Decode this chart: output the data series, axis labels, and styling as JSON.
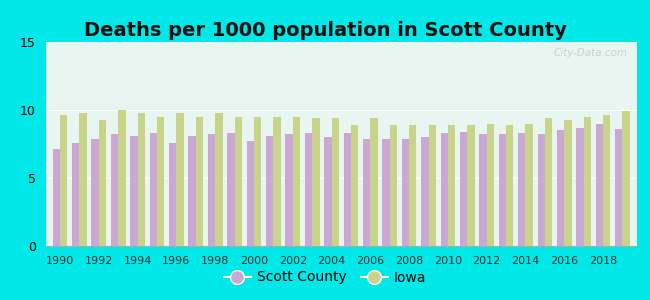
{
  "title": "Deaths per 1000 population in Scott County",
  "title_fontsize": 14,
  "background_color": "#00e8e8",
  "plot_bg": "#e8f5f0",
  "years": [
    1990,
    1991,
    1992,
    1993,
    1994,
    1995,
    1996,
    1997,
    1998,
    1999,
    2000,
    2001,
    2002,
    2003,
    2004,
    2005,
    2006,
    2007,
    2008,
    2009,
    2010,
    2011,
    2012,
    2013,
    2014,
    2015,
    2016,
    2017,
    2018,
    2019
  ],
  "scott_county": [
    7.1,
    7.6,
    7.9,
    8.2,
    8.1,
    8.3,
    7.6,
    8.1,
    8.2,
    8.3,
    7.7,
    8.1,
    8.2,
    8.3,
    8.0,
    8.3,
    7.9,
    7.9,
    7.9,
    8.0,
    8.3,
    8.4,
    8.2,
    8.2,
    8.3,
    8.2,
    8.5,
    8.7,
    9.0,
    8.6
  ],
  "iowa": [
    9.6,
    9.8,
    9.3,
    10.0,
    9.8,
    9.5,
    9.8,
    9.5,
    9.8,
    9.5,
    9.5,
    9.5,
    9.5,
    9.4,
    9.4,
    8.9,
    9.4,
    8.9,
    8.9,
    8.9,
    8.9,
    8.9,
    9.0,
    8.9,
    9.0,
    9.4,
    9.3,
    9.5,
    9.6,
    9.9
  ],
  "scott_color": "#c9a8d4",
  "iowa_color": "#c8d48a",
  "ylim": [
    0,
    15
  ],
  "yticks": [
    0,
    5,
    10,
    15
  ],
  "bar_width": 0.38,
  "legend_labels": [
    "Scott County",
    "Iowa"
  ],
  "watermark": "City-Data.com"
}
